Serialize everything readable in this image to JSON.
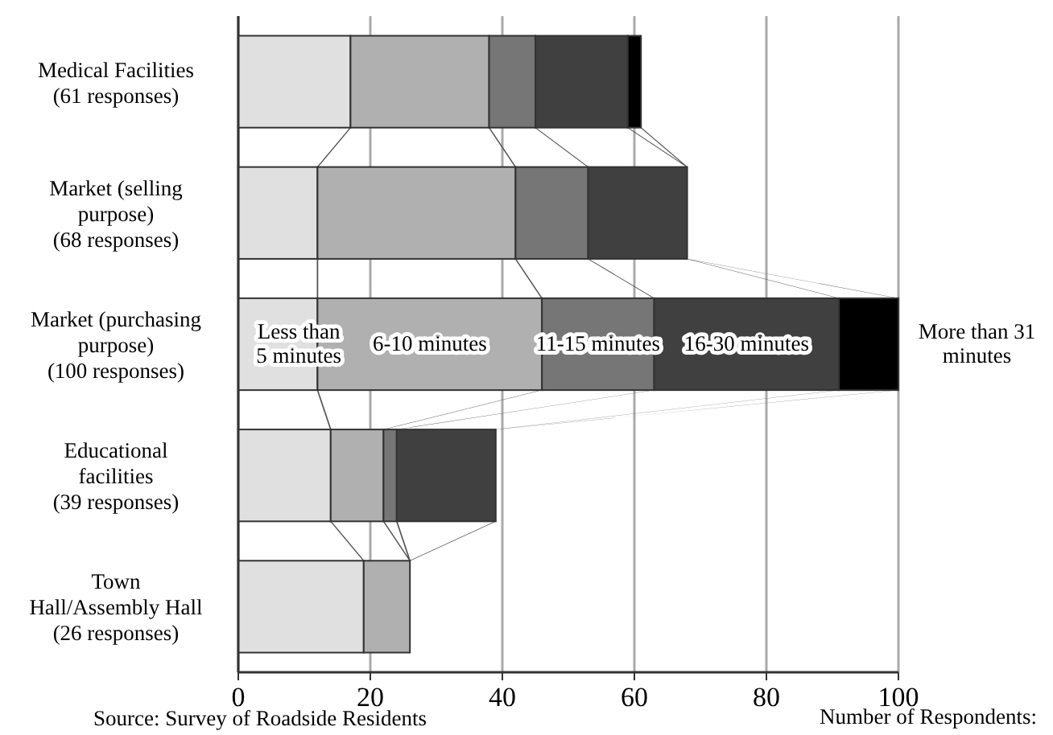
{
  "chart_data": {
    "type": "bar",
    "orientation": "horizontal",
    "stacked": true,
    "categories": [
      "Medical Facilities\n(61 responses)",
      "Market (selling\npurpose)\n(68 responses)",
      "Market (purchasing\npurpose)\n(100 responses)",
      "Educational\nfacilities\n(39 responses)",
      "Town\nHall/Assembly Hall\n(26 responses)"
    ],
    "series": [
      {
        "name": "Less than\n5 minutes",
        "color": "#e0e0e0",
        "values": [
          17,
          12,
          12,
          14,
          19
        ]
      },
      {
        "name": "6-10 minutes",
        "color": "#b0b0b0",
        "values": [
          21,
          30,
          34,
          8,
          7
        ]
      },
      {
        "name": "11-15 minutes",
        "color": "#767676",
        "values": [
          7,
          11,
          17,
          2,
          0
        ]
      },
      {
        "name": "16-30 minutes",
        "color": "#404040",
        "values": [
          14,
          15,
          28,
          15,
          0
        ]
      },
      {
        "name": "More than 31\nminutes",
        "color": "#000000",
        "values": [
          2,
          0,
          9,
          0,
          0
        ]
      }
    ],
    "xlim": [
      0,
      100
    ],
    "xticks": [
      0,
      20,
      40,
      60,
      80,
      100
    ],
    "grid": "x",
    "xlabel": "Number of Respondents:",
    "annotations": [
      "Source: Survey of Roadside Residents"
    ]
  }
}
